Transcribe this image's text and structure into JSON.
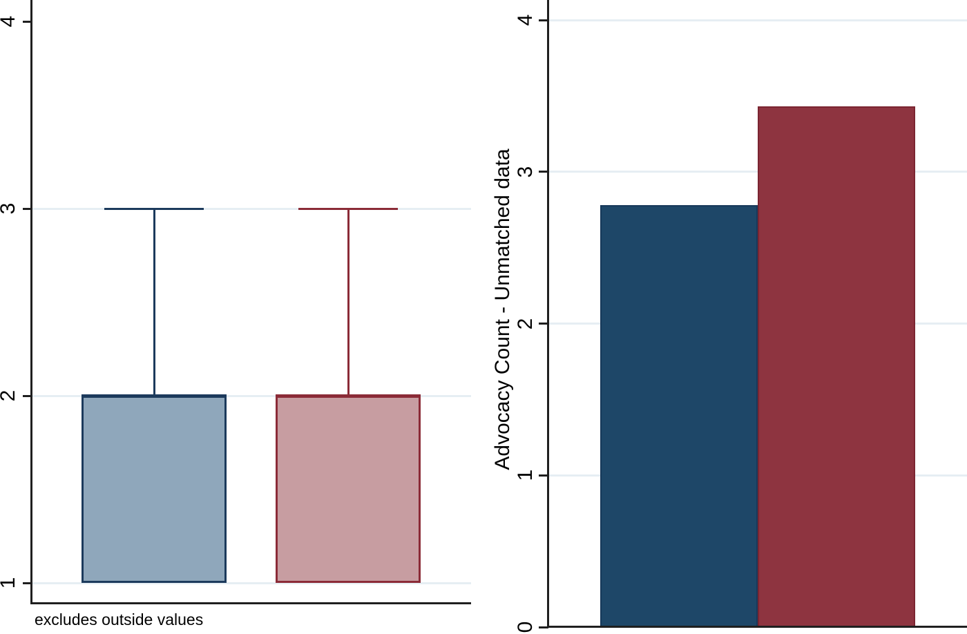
{
  "colors": {
    "gridline": "#e6eef3",
    "axis": "#1f1f1f",
    "text": "#000000",
    "boxplot_blue_fill": "#8fa7bb",
    "boxplot_blue_stroke": "#1c3a5c",
    "boxplot_red_fill": "#c79da1",
    "boxplot_red_stroke": "#8b2b37",
    "bar_blue_fill": "#1e4768",
    "bar_red_fill": "#8e3440"
  },
  "chart_data": [
    {
      "id": "boxplot",
      "type": "box",
      "title": "",
      "note": "excludes outside values",
      "yticks": [
        1,
        2,
        3,
        4
      ],
      "gridlines": [
        1,
        2,
        3
      ],
      "ylim": [
        0.89,
        4.11
      ],
      "grid": true,
      "legend": "none",
      "series": [
        {
          "name": "box-blue",
          "fill": "#8fa7bb",
          "stroke": "#1c3a5c",
          "q1": 1,
          "median": 2,
          "q3": 2,
          "whisker_low": 1,
          "whisker_high": 3
        },
        {
          "name": "box-red",
          "fill": "#c79da1",
          "stroke": "#8b2b37",
          "q1": 1,
          "median": 2,
          "q3": 2,
          "whisker_low": 1,
          "whisker_high": 3
        }
      ]
    },
    {
      "id": "barchart",
      "type": "bar",
      "title": "",
      "ylabel": "Advocacy Count - Unmatched data",
      "yticks": [
        0,
        1,
        2,
        3,
        4
      ],
      "gridlines": [
        1,
        2,
        3,
        4
      ],
      "ylim": [
        0,
        4.18
      ],
      "grid": true,
      "legend": "none",
      "series": [
        {
          "name": "bar-blue",
          "fill": "#1e4768",
          "stroke": "#17395a",
          "value": 2.78
        },
        {
          "name": "bar-red",
          "fill": "#8e3440",
          "stroke": "#7b2531",
          "value": 3.43
        }
      ]
    }
  ]
}
